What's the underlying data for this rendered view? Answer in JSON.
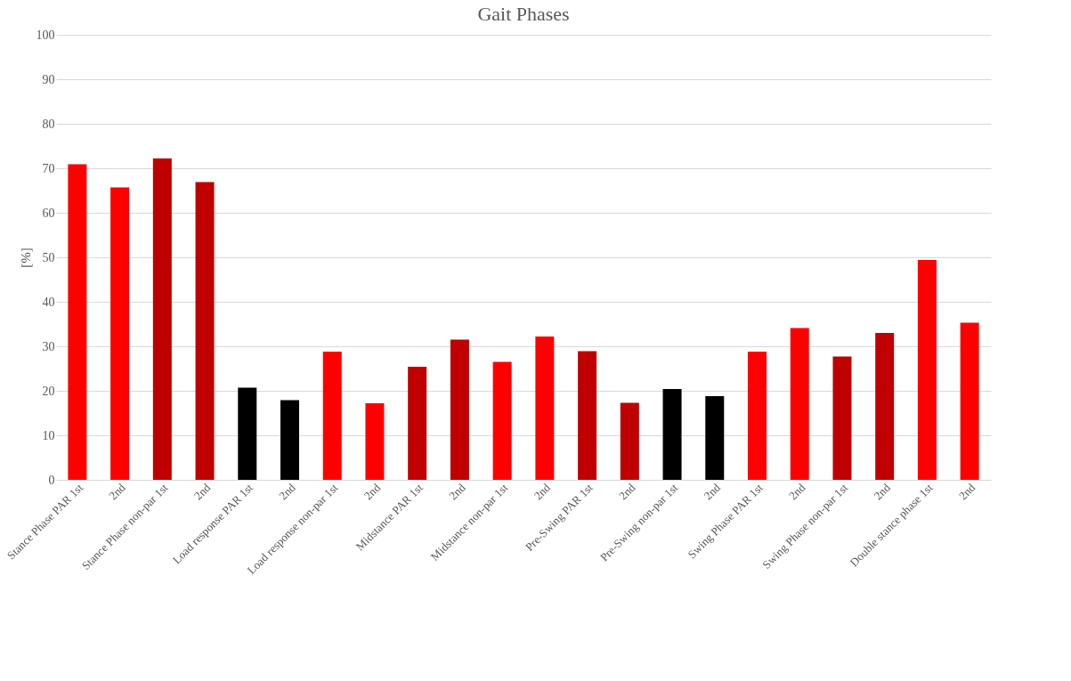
{
  "chart_data": {
    "type": "bar",
    "title": "Gait Phases",
    "ylabel": "[%]",
    "categories": [
      "Stance Phase PAR 1st",
      "2nd",
      "Stance Phase non-par 1st",
      "2nd",
      "Load response PAR 1st",
      "2nd",
      "Load response non-par 1st",
      "2nd",
      "Midstance PAR 1st",
      "2nd",
      "Midstance non-par 1st",
      "2nd",
      "Pre-Swing PAR 1st",
      "2nd",
      "Pre-Swing non-par 1st",
      "2nd",
      "Swing Phase PAR 1st",
      "2nd",
      "Swing Phase non-par 1st",
      "2nd",
      "Double stance phase 1st",
      "2nd"
    ],
    "values": [
      70.9,
      65.7,
      72.2,
      66.9,
      20.7,
      17.9,
      28.8,
      17.2,
      25.4,
      31.5,
      26.5,
      32.2,
      28.9,
      17.3,
      20.4,
      18.8,
      28.8,
      34.1,
      27.7,
      33.0,
      49.4,
      35.3
    ],
    "colors": [
      "#ff0000",
      "#ff0000",
      "#c00000",
      "#c00000",
      "#000000",
      "#000000",
      "#ff0000",
      "#ff0000",
      "#c00000",
      "#c00000",
      "#ff0000",
      "#ff0000",
      "#c00000",
      "#c00000",
      "#000000",
      "#000000",
      "#ff0000",
      "#ff0000",
      "#c00000",
      "#c00000",
      "#ff0000",
      "#ff0000"
    ],
    "ylim": [
      0,
      100
    ],
    "yticks": [
      0,
      10,
      20,
      30,
      40,
      50,
      60,
      70,
      80,
      90,
      100
    ],
    "grid": "y"
  }
}
